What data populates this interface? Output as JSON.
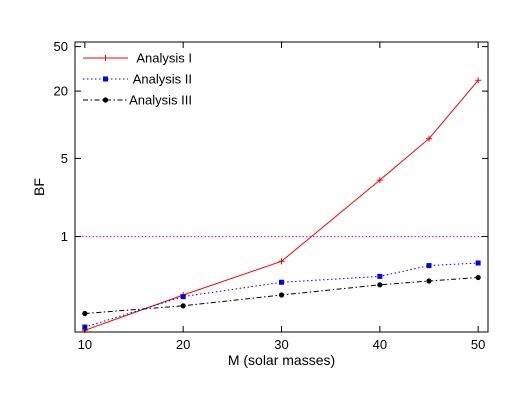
{
  "chart_data": {
    "type": "line",
    "title": "",
    "xlabel": "M (solar masses)",
    "ylabel": "BF",
    "x_scale": "linear",
    "y_scale": "log",
    "xlim": [
      9,
      51
    ],
    "ylim": [
      0.14,
      55
    ],
    "x_ticks": [
      10,
      20,
      30,
      40,
      50
    ],
    "y_ticks": [
      1,
      5,
      20,
      50
    ],
    "grid": false,
    "legend_position": "top-left",
    "reference_line": {
      "y": 1,
      "color": "#ff00ff",
      "style": "dotted"
    },
    "series": [
      {
        "name": "Analysis I",
        "color": "#ff0000",
        "line_style": "solid",
        "marker": "plus",
        "x": [
          10,
          20,
          30,
          40,
          45,
          50
        ],
        "y": [
          0.145,
          0.3,
          0.6,
          3.2,
          7.5,
          25
        ]
      },
      {
        "name": "Analysis II",
        "color": "#0000ff",
        "line_style": "dotted",
        "marker": "square",
        "x": [
          10,
          20,
          30,
          40,
          45,
          50
        ],
        "y": [
          0.155,
          0.29,
          0.39,
          0.44,
          0.55,
          0.58
        ]
      },
      {
        "name": "Analysis III",
        "color": "#000000",
        "line_style": "dashdot",
        "marker": "circle",
        "x": [
          10,
          20,
          30,
          40,
          45,
          50
        ],
        "y": [
          0.205,
          0.24,
          0.3,
          0.37,
          0.4,
          0.43
        ]
      }
    ]
  }
}
